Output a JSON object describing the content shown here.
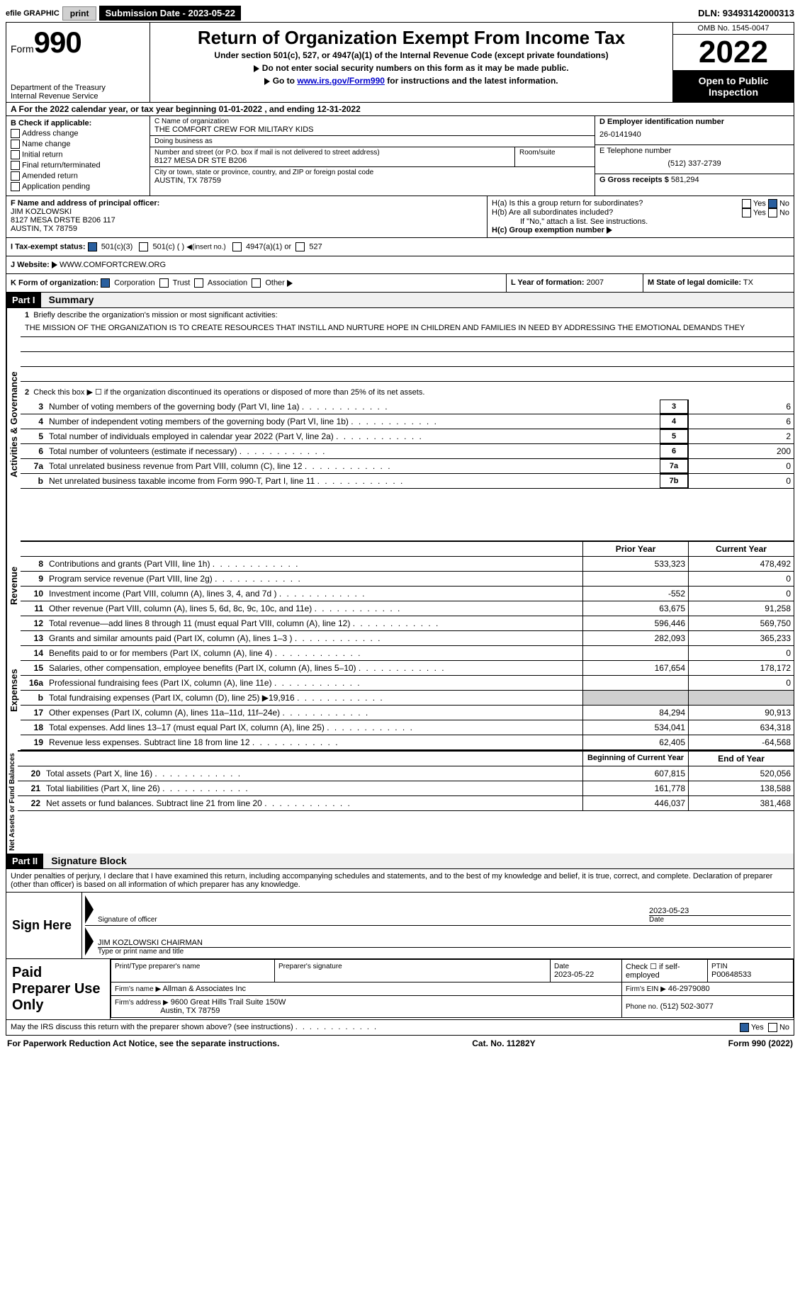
{
  "topbar": {
    "efile_label": "efile GRAPHIC",
    "print_btn": "print",
    "sub_date_label": "Submission Date - 2023-05-22",
    "dln_label": "DLN: 93493142000313"
  },
  "header": {
    "form_label": "Form",
    "form_number": "990",
    "dept": "Department of the Treasury\nInternal Revenue Service",
    "title": "Return of Organization Exempt From Income Tax",
    "sub": "Under section 501(c), 527, or 4947(a)(1) of the Internal Revenue Code (except private foundations)",
    "note1": "Do not enter social security numbers on this form as it may be made public.",
    "note2_pre": "Go to ",
    "note2_link": "www.irs.gov/Form990",
    "note2_post": " for instructions and the latest information.",
    "omb": "OMB No. 1545-0047",
    "year": "2022",
    "open": "Open to Public Inspection"
  },
  "sectionA": {
    "line": "A For the 2022 calendar year, or tax year beginning 01-01-2022   , and ending 12-31-2022"
  },
  "boxB": {
    "label": "B Check if applicable:",
    "items": [
      "Address change",
      "Name change",
      "Initial return",
      "Final return/terminated",
      "Amended return",
      "Application pending"
    ]
  },
  "org": {
    "name_label": "C Name of organization",
    "name": "THE COMFORT CREW FOR MILITARY KIDS",
    "dba_label": "Doing business as",
    "dba": "",
    "street_label": "Number and street (or P.O. box if mail is not delivered to street address)",
    "room_label": "Room/suite",
    "street": "8127 MESA DR STE B206",
    "city_label": "City or town, state or province, country, and ZIP or foreign postal code",
    "city": "AUSTIN, TX  78759"
  },
  "boxD": {
    "label": "D Employer identification number",
    "value": "26-0141940"
  },
  "boxE": {
    "label": "E Telephone number",
    "value": "(512) 337-2739"
  },
  "boxG": {
    "label": "G Gross receipts $",
    "value": "581,294"
  },
  "boxF": {
    "label": "F Name and address of principal officer:",
    "name": "JIM KOZLOWSKI",
    "addr1": "8127 MESA DRSTE B206 117",
    "addr2": "AUSTIN, TX  78759"
  },
  "boxH": {
    "a_label": "H(a)  Is this a group return for subordinates?",
    "b_label": "H(b)  Are all subordinates included?",
    "b_note": "If \"No,\" attach a list. See instructions.",
    "c_label": "H(c)  Group exemption number",
    "yes": "Yes",
    "no": "No"
  },
  "boxI": {
    "label": "I   Tax-exempt status:",
    "opt1": "501(c)(3)",
    "opt2": "501(c) (  )",
    "opt2_note": "(insert no.)",
    "opt3": "4947(a)(1) or",
    "opt4": "527"
  },
  "boxJ": {
    "label": "J   Website:",
    "value": "WWW.COMFORTCREW.ORG"
  },
  "boxK": {
    "label": "K Form of organization:",
    "opts": [
      "Corporation",
      "Trust",
      "Association",
      "Other"
    ]
  },
  "boxL": {
    "label": "L Year of formation:",
    "value": "2007"
  },
  "boxM": {
    "label": "M State of legal domicile:",
    "value": "TX"
  },
  "part1": {
    "hdr": "Part I",
    "title": "Summary",
    "vert1": "Activities & Governance",
    "vert2": "Revenue",
    "vert3": "Expenses",
    "vert4": "Net Assets or Fund Balances",
    "q1": "Briefly describe the organization's mission or most significant activities:",
    "mission": "THE MISSION OF THE ORGANIZATION IS TO CREATE RESOURCES THAT INSTILL AND NURTURE HOPE IN CHILDREN AND FAMILIES IN NEED BY ADDRESSING THE EMOTIONAL DEMANDS THEY",
    "q2": "Check this box ▶ ☐ if the organization discontinued its operations or disposed of more than 25% of its net assets.",
    "rows_gov": [
      {
        "n": "3",
        "t": "Number of voting members of the governing body (Part VI, line 1a)",
        "box": "3",
        "v": "6"
      },
      {
        "n": "4",
        "t": "Number of independent voting members of the governing body (Part VI, line 1b)",
        "box": "4",
        "v": "6"
      },
      {
        "n": "5",
        "t": "Total number of individuals employed in calendar year 2022 (Part V, line 2a)",
        "box": "5",
        "v": "2"
      },
      {
        "n": "6",
        "t": "Total number of volunteers (estimate if necessary)",
        "box": "6",
        "v": "200"
      },
      {
        "n": "7a",
        "t": "Total unrelated business revenue from Part VIII, column (C), line 12",
        "box": "7a",
        "v": "0"
      },
      {
        "n": "b",
        "t": "Net unrelated business taxable income from Form 990-T, Part I, line 11",
        "box": "7b",
        "v": "0"
      }
    ],
    "prior_hdr": "Prior Year",
    "current_hdr": "Current Year",
    "rows_rev": [
      {
        "n": "8",
        "t": "Contributions and grants (Part VIII, line 1h)",
        "p": "533,323",
        "c": "478,492"
      },
      {
        "n": "9",
        "t": "Program service revenue (Part VIII, line 2g)",
        "p": "",
        "c": "0"
      },
      {
        "n": "10",
        "t": "Investment income (Part VIII, column (A), lines 3, 4, and 7d )",
        "p": "-552",
        "c": "0"
      },
      {
        "n": "11",
        "t": "Other revenue (Part VIII, column (A), lines 5, 6d, 8c, 9c, 10c, and 11e)",
        "p": "63,675",
        "c": "91,258"
      },
      {
        "n": "12",
        "t": "Total revenue—add lines 8 through 11 (must equal Part VIII, column (A), line 12)",
        "p": "596,446",
        "c": "569,750"
      }
    ],
    "rows_exp": [
      {
        "n": "13",
        "t": "Grants and similar amounts paid (Part IX, column (A), lines 1–3 )",
        "p": "282,093",
        "c": "365,233"
      },
      {
        "n": "14",
        "t": "Benefits paid to or for members (Part IX, column (A), line 4)",
        "p": "",
        "c": "0"
      },
      {
        "n": "15",
        "t": "Salaries, other compensation, employee benefits (Part IX, column (A), lines 5–10)",
        "p": "167,654",
        "c": "178,172"
      },
      {
        "n": "16a",
        "t": "Professional fundraising fees (Part IX, column (A), line 11e)",
        "p": "",
        "c": "0"
      },
      {
        "n": "b",
        "t": "Total fundraising expenses (Part IX, column (D), line 25) ▶19,916",
        "p": "SHADED",
        "c": "SHADED"
      },
      {
        "n": "17",
        "t": "Other expenses (Part IX, column (A), lines 11a–11d, 11f–24e)",
        "p": "84,294",
        "c": "90,913"
      },
      {
        "n": "18",
        "t": "Total expenses. Add lines 13–17 (must equal Part IX, column (A), line 25)",
        "p": "534,041",
        "c": "634,318"
      },
      {
        "n": "19",
        "t": "Revenue less expenses. Subtract line 18 from line 12",
        "p": "62,405",
        "c": "-64,568"
      }
    ],
    "begin_hdr": "Beginning of Current Year",
    "end_hdr": "End of Year",
    "rows_net": [
      {
        "n": "20",
        "t": "Total assets (Part X, line 16)",
        "p": "607,815",
        "c": "520,056"
      },
      {
        "n": "21",
        "t": "Total liabilities (Part X, line 26)",
        "p": "161,778",
        "c": "138,588"
      },
      {
        "n": "22",
        "t": "Net assets or fund balances. Subtract line 21 from line 20",
        "p": "446,037",
        "c": "381,468"
      }
    ]
  },
  "part2": {
    "hdr": "Part II",
    "title": "Signature Block",
    "decl": "Under penalties of perjury, I declare that I have examined this return, including accompanying schedules and statements, and to the best of my knowledge and belief, it is true, correct, and complete. Declaration of preparer (other than officer) is based on all information of which preparer has any knowledge.",
    "sign_here": "Sign Here",
    "sig_officer_label": "Signature of officer",
    "sig_date": "2023-05-23",
    "sig_date_label": "Date",
    "officer_name": "JIM KOZLOWSKI CHAIRMAN",
    "officer_name_label": "Type or print name and title",
    "paid_prep": "Paid Preparer Use Only",
    "prep_name_label": "Print/Type preparer's name",
    "prep_sig_label": "Preparer's signature",
    "prep_date_label": "Date",
    "prep_date": "2023-05-22",
    "self_emp": "Check ☐ if self-employed",
    "ptin_label": "PTIN",
    "ptin": "P00648533",
    "firm_name_label": "Firm's name    ▶",
    "firm_name": "Allman & Associates Inc",
    "firm_ein_label": "Firm's EIN ▶",
    "firm_ein": "46-2979080",
    "firm_addr_label": "Firm's address ▶",
    "firm_addr1": "9600 Great Hills Trail Suite 150W",
    "firm_addr2": "Austin, TX  78759",
    "firm_phone_label": "Phone no.",
    "firm_phone": "(512) 502-3077",
    "discuss": "May the IRS discuss this return with the preparer shown above? (see instructions)"
  },
  "footer": {
    "left": "For Paperwork Reduction Act Notice, see the separate instructions.",
    "mid": "Cat. No. 11282Y",
    "right": "Form 990 (2022)"
  },
  "colors": {
    "link": "#0000cc",
    "check_blue": "#2a5f9e",
    "check_green": "#2a7a2a",
    "black": "#000000"
  }
}
